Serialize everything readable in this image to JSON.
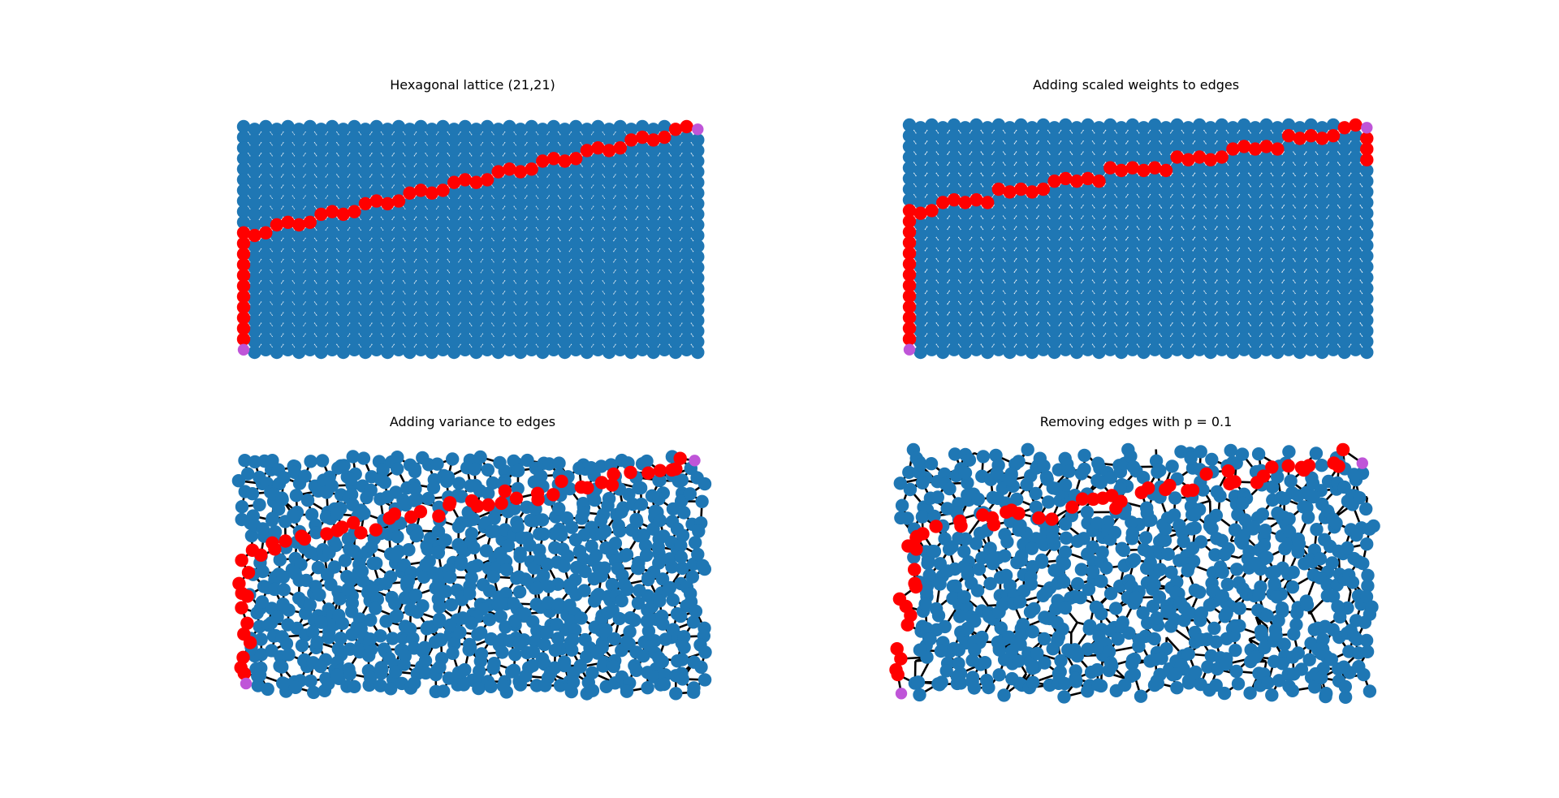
{
  "figure": {
    "panels": [
      {
        "title": "Hexagonal lattice (21,21)",
        "kind": "regular",
        "jitter": 0,
        "remove_p": 0
      },
      {
        "title": "Adding scaled weights to edges",
        "kind": "regular",
        "jitter": 0,
        "remove_p": 0
      },
      {
        "title": "Adding variance to edges",
        "kind": "noisy",
        "jitter": 0.32,
        "remove_p": 0
      },
      {
        "title": "Removing edges with p = 0.1",
        "kind": "noisy",
        "jitter": 0.42,
        "remove_p": 0.1
      }
    ],
    "lattice": {
      "rows": 21,
      "cols": 21
    },
    "colors": {
      "node": "#1f77b4",
      "path": "#ff0000",
      "endpoint": "#bf55d8",
      "edge": "#000000",
      "background": "#ffffff"
    }
  }
}
